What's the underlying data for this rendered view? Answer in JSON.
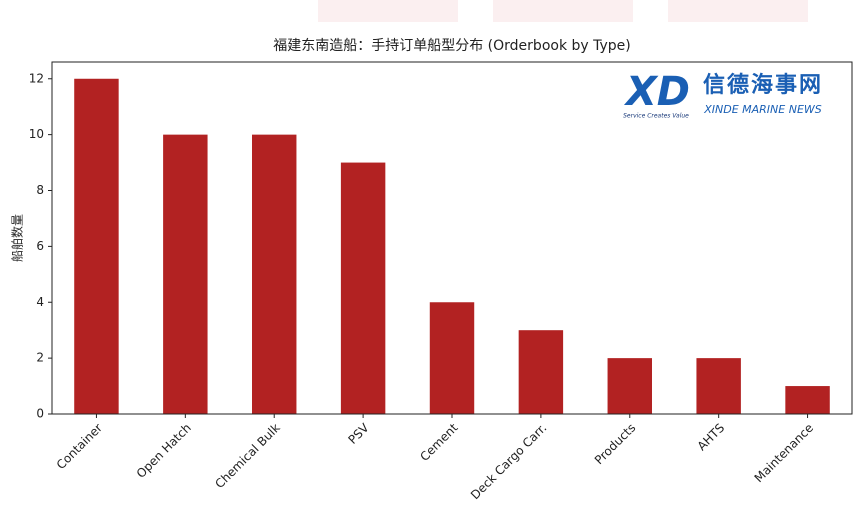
{
  "chart_data": {
    "type": "bar",
    "title": "福建东南造船：手持订单船型分布 (Orderbook by Type)",
    "y_label": "船舶数量",
    "categories": [
      "Container",
      "Open Hatch",
      "Chemical Bulk",
      "PSV",
      "Cement",
      "Deck Cargo Carr.",
      "Products",
      "AHTS",
      "Maintenance"
    ],
    "values": [
      12,
      10,
      10,
      9,
      4,
      3,
      2,
      2,
      1
    ],
    "color": "#b22222",
    "ylim": [
      0,
      12.6
    ],
    "yticks": [
      0,
      2,
      4,
      6,
      8,
      10,
      12
    ],
    "grid": false
  },
  "logo": {
    "mark": "XD",
    "name": "信德海事网",
    "name_en": "XINDE MARINE NEWS",
    "slogan": "Service Creates Value"
  }
}
